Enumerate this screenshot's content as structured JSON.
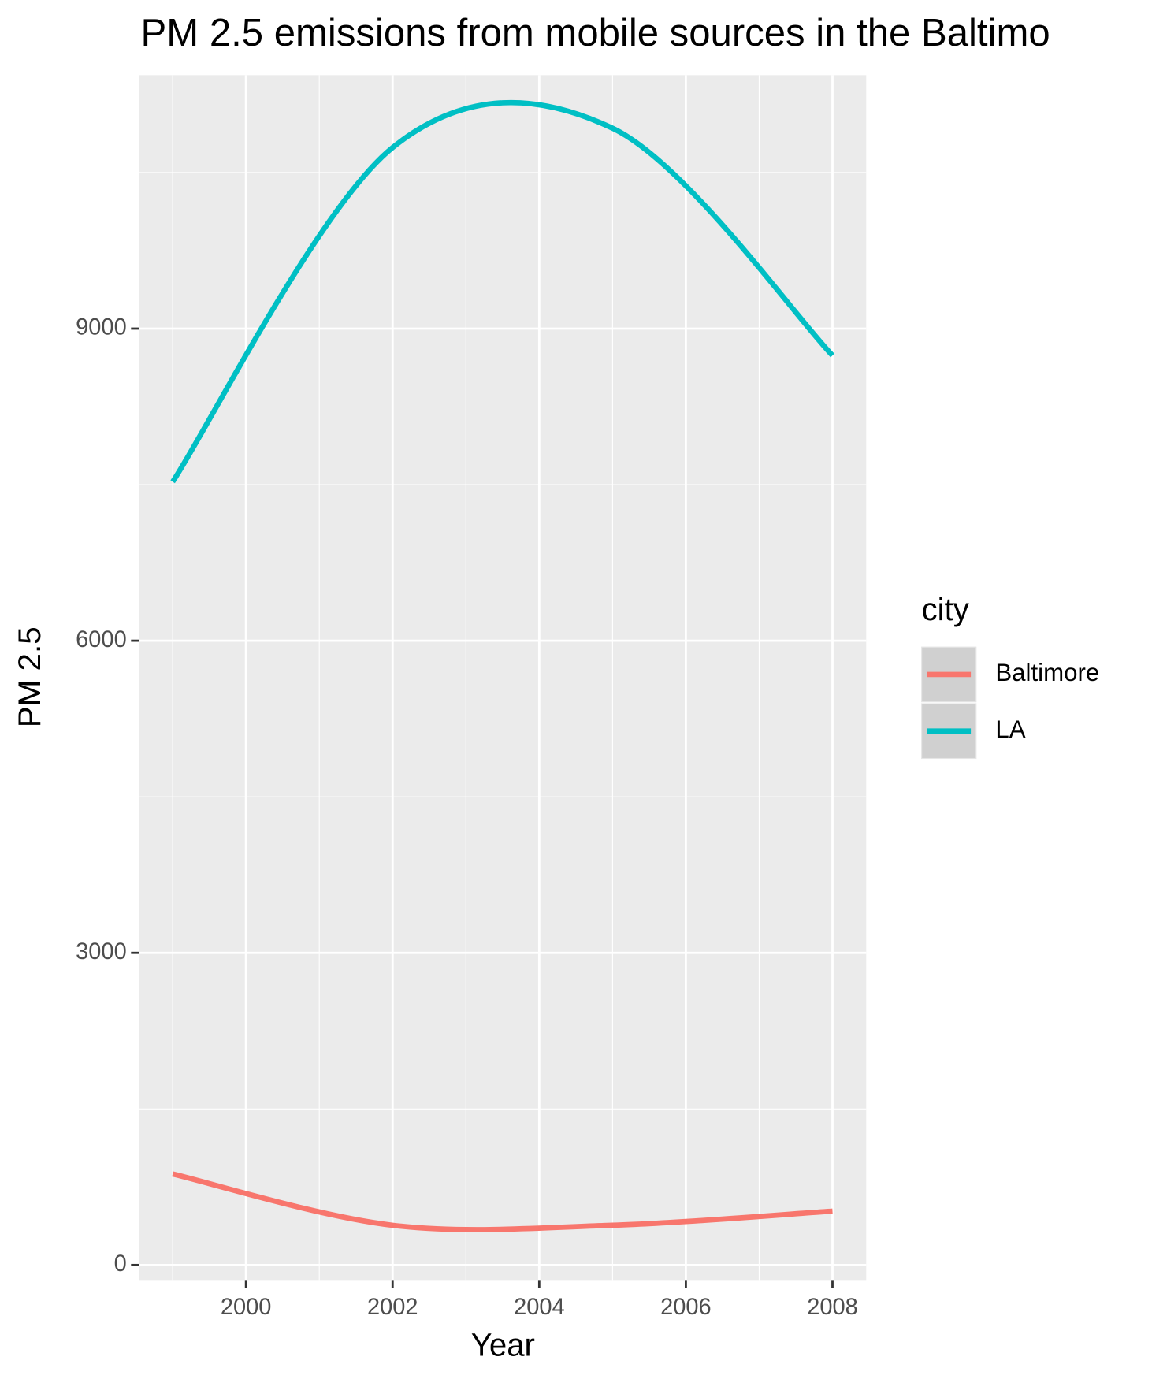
{
  "chart_data": {
    "type": "line",
    "title": "PM 2.5 emissions from mobile sources in the Baltimo",
    "x_label": "Year",
    "y_label": "PM 2.5",
    "x": [
      1999,
      2002,
      2005,
      2008
    ],
    "series": [
      {
        "name": "Baltimore",
        "color": "#F8766D",
        "values": [
          875,
          382,
          382,
          518
        ]
      },
      {
        "name": "LA",
        "color": "#00BFC4",
        "values": [
          7528,
          10740,
          10926,
          8742
        ]
      }
    ],
    "xlim": [
      1998.54,
      2008.46
    ],
    "xticks": [
      2000,
      2002,
      2004,
      2006,
      2008
    ],
    "ylim": [
      -144,
      11436
    ],
    "yticks": [
      0,
      3000,
      6000,
      9000
    ],
    "legend_title": "city",
    "legend": "right",
    "grid": true
  }
}
